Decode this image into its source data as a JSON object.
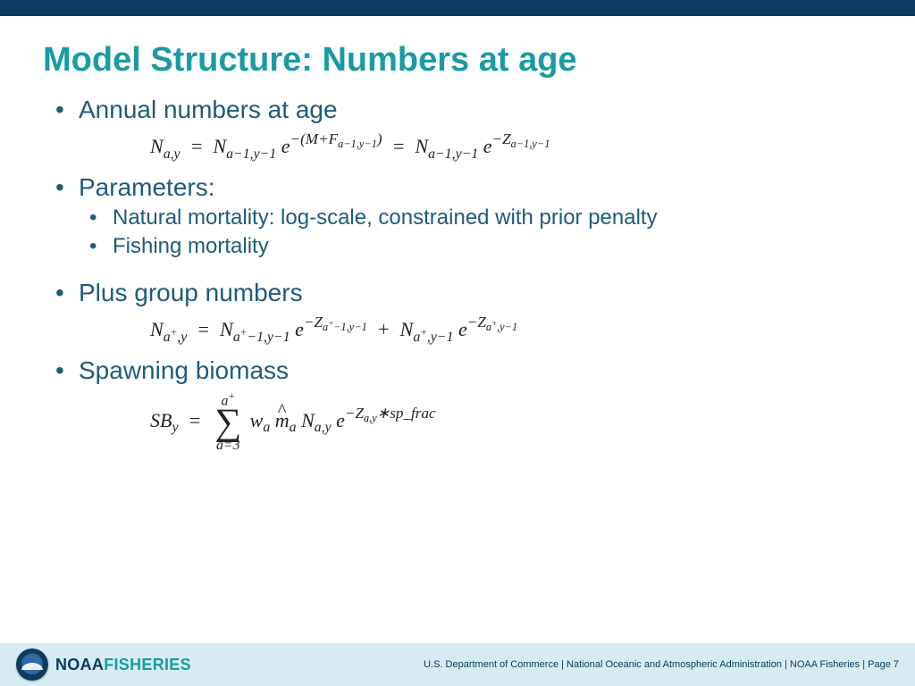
{
  "colors": {
    "topbar": "#0b3b60",
    "title": "#1a9ba3",
    "body_text": "#1f5b7a",
    "equation_text": "#222222",
    "footer_bg": "#d6ecf2",
    "logo_dark": "#0b3b60",
    "logo_teal": "#1a9ba3"
  },
  "title": "Model Structure: Numbers at age",
  "bullets": {
    "b1": "Annual numbers at age",
    "b2": "Parameters:",
    "b2_sub1": "Natural mortality: log-scale, constrained with prior penalty",
    "b2_sub2": "Fishing mortality",
    "b3": "Plus group numbers",
    "b4": "Spawning biomass"
  },
  "equations": {
    "eq1_plain": "N_{a,y} = N_{a-1,y-1} e^{-(M + F_{a-1,y-1})} = N_{a-1,y-1} e^{-Z_{a-1,y-1}}",
    "eq2_plain": "N_{a+,y} = N_{a+-1,y-1} e^{-Z_{a+-1,y-1}} + N_{a+,y-1} e^{-Z_{a+,y-1}}",
    "eq3_plain": "SB_y = sum_{a=3}^{a+} w_a * mhat_a * N_{a,y} * e^{-Z_{a,y} * sp_frac}",
    "eq3_sum_lower": "a=3",
    "eq3_sum_upper": "a",
    "eq3_sum_upper_sup": "+"
  },
  "footer": {
    "logo_primary": "NOAA",
    "logo_secondary": "FISHERIES",
    "text": "U.S. Department of Commerce  |  National Oceanic and Atmospheric Administration  |  NOAA Fisheries  |  Page 7"
  }
}
